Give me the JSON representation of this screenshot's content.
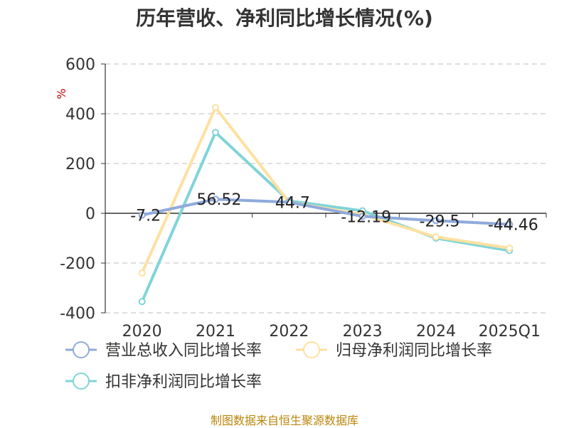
{
  "chart_data": {
    "type": "line",
    "title": "历年营收、净利同比增长情况(%)",
    "ylabel": "%",
    "categories": [
      "2020",
      "2021",
      "2022",
      "2023",
      "2024",
      "2025Q1"
    ],
    "ylim": [
      -400,
      600
    ],
    "yticks": [
      600,
      400,
      200,
      0,
      -200,
      -400
    ],
    "grid": true,
    "legend_position": "bottom-left",
    "series": [
      {
        "name": "营业总收入同比增长率",
        "color": "#8faadc",
        "values": [
          -7.2,
          56.52,
          44.7,
          -12.19,
          -29.5,
          -44.46
        ],
        "labels": [
          "-7.2",
          "56.52",
          "44.7",
          "-12.19",
          "-29.5",
          "-44.46"
        ]
      },
      {
        "name": "归母净利润同比增长率",
        "color": "#ffe0a0",
        "values": [
          -240,
          425,
          45,
          -5,
          -95,
          -140
        ]
      },
      {
        "name": "扣非净利润同比增长率",
        "color": "#80d4d8",
        "values": [
          -355,
          325,
          50,
          10,
          -100,
          -150
        ]
      }
    ]
  },
  "source": "制图数据来自恒生聚源数据库"
}
